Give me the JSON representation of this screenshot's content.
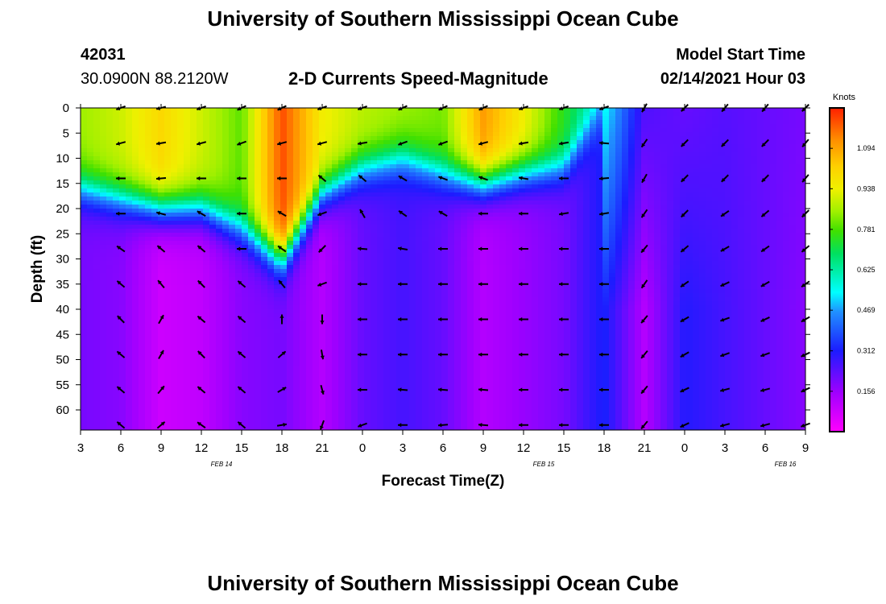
{
  "page": {
    "title_top": "University of Southern Mississippi Ocean Cube",
    "title_bottom": "University of Southern Mississippi Ocean Cube",
    "station_id": "42031",
    "station_coords": "30.0900N 88.2120W",
    "model_start_label": "Model Start Time",
    "model_start_value": "02/14/2021 Hour 03"
  },
  "chart_data": {
    "type": "heatmap",
    "title": "2-D Currents Speed-Magnitude",
    "xlabel": "Forecast Time(Z)",
    "ylabel": "Depth (ft)",
    "x_tick_labels": [
      "3",
      "6",
      "9",
      "12",
      "15",
      "18",
      "21",
      "0",
      "3",
      "6",
      "9",
      "12",
      "15",
      "18",
      "21",
      "0",
      "3",
      "6",
      "9"
    ],
    "date_labels": [
      {
        "text": "FEB 14",
        "tick_index": 3.5
      },
      {
        "text": "FEB 15",
        "tick_index": 11.5
      },
      {
        "text": "FEB 16",
        "tick_index": 17.5
      }
    ],
    "y_ticks": [
      0,
      5,
      10,
      15,
      20,
      25,
      30,
      35,
      40,
      45,
      50,
      55,
      60
    ],
    "ylim": [
      0,
      64
    ],
    "colorbar": {
      "label": "Knots",
      "ticks": [
        "1.094",
        "0.938",
        "0.781",
        "0.625",
        "0.469",
        "0.312",
        "0.156"
      ],
      "range": [
        0,
        1.25
      ]
    },
    "speed_knots_by_time": [
      {
        "x": 3,
        "surface": 0.85,
        "interface_depth_ft": 16,
        "deep": 0.2
      },
      {
        "x": 6,
        "surface": 0.9,
        "interface_depth_ft": 18,
        "deep": 0.18
      },
      {
        "x": 9,
        "surface": 1.0,
        "interface_depth_ft": 20,
        "deep": 0.08
      },
      {
        "x": 12,
        "surface": 0.9,
        "interface_depth_ft": 20,
        "deep": 0.1
      },
      {
        "x": 15,
        "surface": 0.8,
        "interface_depth_ft": 24,
        "deep": 0.18
      },
      {
        "x": 18,
        "surface": 1.2,
        "interface_depth_ft": 30,
        "deep": 0.2
      },
      {
        "x": 21,
        "surface": 0.95,
        "interface_depth_ft": 17,
        "deep": 0.12
      },
      {
        "x": 24,
        "surface": 0.88,
        "interface_depth_ft": 12,
        "deep": 0.22
      },
      {
        "x": 27,
        "surface": 0.85,
        "interface_depth_ft": 10,
        "deep": 0.26
      },
      {
        "x": 30,
        "surface": 0.82,
        "interface_depth_ft": 13,
        "deep": 0.22
      },
      {
        "x": 33,
        "surface": 1.1,
        "interface_depth_ft": 15,
        "deep": 0.12
      },
      {
        "x": 36,
        "surface": 0.95,
        "interface_depth_ft": 13,
        "deep": 0.16
      },
      {
        "x": 39,
        "surface": 0.75,
        "interface_depth_ft": 12,
        "deep": 0.2
      },
      {
        "x": 42,
        "surface": 0.55,
        "interface_depth_ft": 0,
        "deep": 0.32
      },
      {
        "x": 45,
        "surface": 0.25,
        "interface_depth_ft": 0,
        "deep": 0.12
      },
      {
        "x": 48,
        "surface": 0.22,
        "interface_depth_ft": 0,
        "deep": 0.3
      },
      {
        "x": 51,
        "surface": 0.24,
        "interface_depth_ft": 0,
        "deep": 0.26
      },
      {
        "x": 54,
        "surface": 0.22,
        "interface_depth_ft": 0,
        "deep": 0.22
      },
      {
        "x": 57,
        "surface": 0.2,
        "interface_depth_ft": 0,
        "deep": 0.18
      }
    ],
    "arrow_depths_ft": [
      0,
      7,
      14,
      21,
      28,
      35,
      42,
      49,
      56,
      63
    ],
    "arrow_times": [
      6,
      9,
      12,
      15,
      18,
      21,
      24,
      27,
      30,
      33,
      36,
      39,
      42,
      45,
      48,
      51,
      54,
      57
    ],
    "arrow_rows_direction_deg": [
      [
        200,
        195,
        200,
        205,
        205,
        200,
        200,
        205,
        205,
        205,
        200,
        200,
        200,
        240,
        225,
        230,
        230,
        225
      ],
      [
        195,
        190,
        195,
        200,
        195,
        195,
        190,
        200,
        200,
        195,
        190,
        190,
        175,
        235,
        225,
        225,
        225,
        230
      ],
      [
        180,
        185,
        180,
        180,
        180,
        140,
        140,
        150,
        160,
        160,
        170,
        180,
        185,
        240,
        225,
        225,
        225,
        230
      ],
      [
        180,
        165,
        150,
        180,
        150,
        200,
        120,
        145,
        150,
        180,
        180,
        190,
        190,
        235,
        225,
        215,
        220,
        225
      ],
      [
        145,
        140,
        140,
        180,
        145,
        225,
        175,
        170,
        180,
        180,
        180,
        180,
        180,
        230,
        220,
        210,
        215,
        220
      ],
      [
        140,
        130,
        135,
        140,
        130,
        200,
        180,
        180,
        180,
        180,
        180,
        180,
        180,
        235,
        215,
        205,
        210,
        215
      ],
      [
        135,
        60,
        140,
        140,
        90,
        270,
        180,
        180,
        180,
        180,
        180,
        180,
        180,
        230,
        210,
        200,
        205,
        210
      ],
      [
        140,
        60,
        135,
        140,
        40,
        280,
        180,
        180,
        180,
        180,
        180,
        180,
        180,
        230,
        210,
        200,
        200,
        205
      ],
      [
        140,
        50,
        140,
        140,
        30,
        285,
        180,
        175,
        175,
        175,
        180,
        180,
        180,
        230,
        205,
        195,
        195,
        205
      ],
      [
        140,
        40,
        145,
        140,
        10,
        250,
        200,
        180,
        185,
        175,
        180,
        180,
        180,
        230,
        205,
        195,
        195,
        200
      ]
    ]
  }
}
